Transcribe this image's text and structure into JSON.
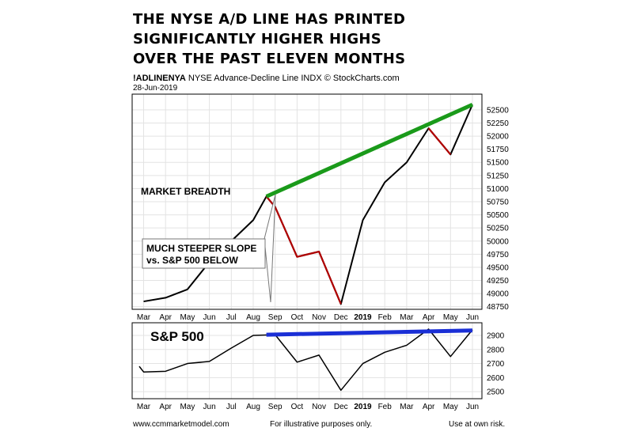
{
  "title": [
    "THE NYSE A/D LINE HAS PRINTED",
    "SIGNIFICANTLY HIGHER HIGHS",
    "OVER THE PAST ELEVEN MONTHS"
  ],
  "header": {
    "symbol": "!ADLINENYA",
    "name": "NYSE Advance-Decline Line",
    "exchange": "INDX",
    "source": "© StockCharts.com",
    "date": "28-Jun-2019"
  },
  "footer": {
    "left": "www.ccmmarketmodel.com",
    "center": "For illustrative purposes only.",
    "right": "Use at own risk."
  },
  "colors": {
    "line": "#000000",
    "highlight": "#b00000",
    "trend_top": "#1a9a1a",
    "trend_bottom": "#1a2fd6",
    "grid": "#e3e3e3"
  },
  "chart_data": [
    {
      "type": "line",
      "name": "NYSE Advance-Decline Line",
      "categories": [
        "Mar",
        "Apr",
        "May",
        "Jun",
        "Jul",
        "Aug",
        "Sep",
        "Oct",
        "Nov",
        "Dec",
        "2019",
        "Feb",
        "Mar",
        "Apr",
        "May",
        "Jun"
      ],
      "ylim": [
        48700,
        52800
      ],
      "yticks": [
        48750,
        49000,
        49250,
        49500,
        49750,
        50000,
        50250,
        50500,
        50750,
        51000,
        51250,
        51500,
        51750,
        52000,
        52250,
        52500
      ],
      "x": [
        0,
        1,
        2,
        3,
        4,
        5,
        5.6,
        6,
        7,
        8,
        9,
        10,
        11,
        12,
        13,
        14,
        15
      ],
      "y": [
        48850,
        48920,
        49080,
        49600,
        50000,
        50400,
        50850,
        50650,
        49700,
        49800,
        48800,
        50400,
        51120,
        51500,
        52150,
        51650,
        52600
      ],
      "highlight_ranges": [
        [
          5.6,
          9
        ],
        [
          13,
          14
        ]
      ],
      "trend_line": {
        "from": [
          5.6,
          50850
        ],
        "to": [
          15,
          52600
        ],
        "color": "#1a9a1a"
      },
      "annotations": [
        "MARKET BREADTH",
        "MUCH STEEPER SLOPE",
        "vs. S&P 500 BELOW"
      ]
    },
    {
      "type": "line",
      "name": "S&P 500",
      "label": "S&P 500",
      "categories": [
        "Mar",
        "Apr",
        "May",
        "Jun",
        "Jul",
        "Aug",
        "Sep",
        "Oct",
        "Nov",
        "Dec",
        "2019",
        "Feb",
        "Mar",
        "Apr",
        "May",
        "Jun"
      ],
      "ylim": [
        2450,
        2990
      ],
      "yticks": [
        2500,
        2600,
        2700,
        2800,
        2900
      ],
      "x": [
        -0.2,
        0,
        1,
        2,
        3,
        4,
        5,
        6,
        7,
        8,
        9,
        10,
        11,
        12,
        13,
        14,
        15
      ],
      "y": [
        2680,
        2640,
        2645,
        2700,
        2715,
        2810,
        2900,
        2905,
        2710,
        2760,
        2510,
        2700,
        2780,
        2830,
        2945,
        2750,
        2940
      ],
      "trend_line": {
        "from": [
          5.6,
          2905
        ],
        "to": [
          15,
          2935
        ],
        "color": "#1a2fd6"
      }
    }
  ]
}
